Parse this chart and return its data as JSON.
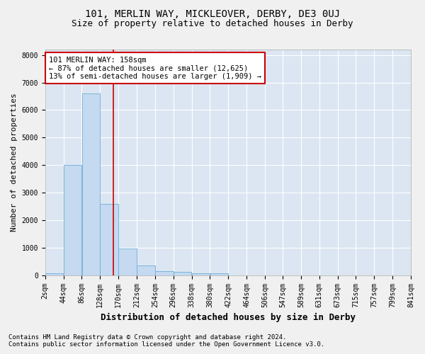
{
  "title": "101, MERLIN WAY, MICKLEOVER, DERBY, DE3 0UJ",
  "subtitle": "Size of property relative to detached houses in Derby",
  "xlabel": "Distribution of detached houses by size in Derby",
  "ylabel": "Number of detached properties",
  "footer_line1": "Contains HM Land Registry data © Crown copyright and database right 2024.",
  "footer_line2": "Contains public sector information licensed under the Open Government Licence v3.0.",
  "annotation_title": "101 MERLIN WAY: 158sqm",
  "annotation_line1": "← 87% of detached houses are smaller (12,625)",
  "annotation_line2": "13% of semi-detached houses are larger (1,909) →",
  "bins": [
    2,
    44,
    86,
    128,
    170,
    212,
    254,
    296,
    338,
    380,
    422,
    464,
    506,
    547,
    589,
    631,
    673,
    715,
    757,
    799,
    841
  ],
  "counts": [
    70,
    4000,
    6600,
    2600,
    960,
    340,
    140,
    120,
    80,
    60,
    0,
    0,
    0,
    0,
    0,
    0,
    0,
    0,
    0,
    0
  ],
  "bar_color": "#c5d9f0",
  "bar_edge_color": "#6baed6",
  "vline_color": "#cc0000",
  "vline_x": 158,
  "annotation_box_edge_color": "#cc0000",
  "plot_bg_color": "#dce6f2",
  "fig_bg_color": "#f0f0f0",
  "grid_color": "#ffffff",
  "ylim": [
    0,
    8200
  ],
  "yticks": [
    0,
    1000,
    2000,
    3000,
    4000,
    5000,
    6000,
    7000,
    8000
  ],
  "title_fontsize": 10,
  "subtitle_fontsize": 9,
  "xlabel_fontsize": 9,
  "ylabel_fontsize": 8,
  "tick_fontsize": 7,
  "annotation_fontsize": 7.5,
  "footer_fontsize": 6.5
}
